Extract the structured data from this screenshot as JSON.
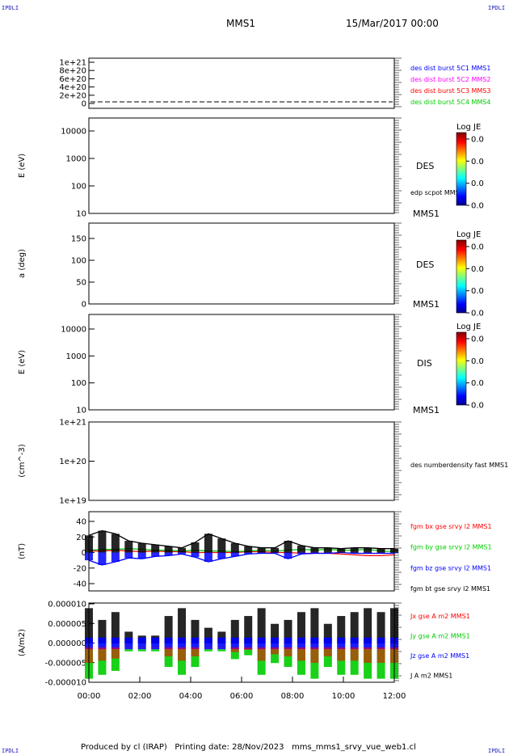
{
  "corners": {
    "label": "IPDLI"
  },
  "header": {
    "spacecraft": "MMS1",
    "date": "15/Mar/2017 00:00"
  },
  "footer": {
    "produced_by": "Produced by cl (IRAP)",
    "printing": "Printing date: 28/Nov/2023",
    "file": "mms_mms1_srvy_vue_web1.cl"
  },
  "colors": {
    "red": "#ff0000",
    "green": "#00cc00",
    "blue": "#0000ff",
    "magenta": "#ff00ff",
    "black": "#000000"
  },
  "chart_data": [
    {
      "type": "line",
      "panel": "distribution",
      "yticks": [
        "1e+21",
        "8e+20",
        "6e+20",
        "4e+20",
        "2e+20",
        "0"
      ],
      "series": [
        {
          "name": "des dist burst 5C1 MMS1",
          "color": "#0000ff",
          "values": []
        },
        {
          "name": "des dist burst 5C2 MMS2",
          "color": "#ff00ff",
          "values": []
        },
        {
          "name": "des dist burst 5C3 MMS3",
          "color": "#ff0000",
          "values": []
        },
        {
          "name": "des dist burst 5C4 MMS4",
          "color": "#00cc00",
          "values": []
        }
      ],
      "ylim": [
        0,
        1e+21
      ]
    },
    {
      "type": "heatmap",
      "panel": "des-energy",
      "ylabel": "E (eV)",
      "yscale": "log",
      "yticks": [
        "10000",
        "1000",
        "100",
        "10"
      ],
      "ylim": [
        10,
        20000
      ],
      "instrument": "DES",
      "spacecraft": "MMS1",
      "overlay": "edp scpot MMS1",
      "colorbar": {
        "title": "Log JE",
        "ticks": [
          "0.0",
          "0.0",
          "0.0",
          "0.0"
        ]
      }
    },
    {
      "type": "heatmap",
      "panel": "des-pitch",
      "ylabel": "a (deg)",
      "yticks": [
        "150",
        "100",
        "50",
        "0"
      ],
      "ylim": [
        0,
        180
      ],
      "instrument": "DES",
      "spacecraft": "MMS1",
      "colorbar": {
        "title": "Log JE",
        "ticks": [
          "0.0",
          "0.0",
          "0.0",
          "0.0"
        ]
      }
    },
    {
      "type": "heatmap",
      "panel": "dis-energy",
      "ylabel": "E (eV)",
      "yscale": "log",
      "yticks": [
        "10000",
        "1000",
        "100",
        "10"
      ],
      "ylim": [
        10,
        20000
      ],
      "instrument": "DIS",
      "spacecraft": "MMS1",
      "colorbar": {
        "title": "Log JE",
        "ticks": [
          "0.0",
          "0.0",
          "0.0",
          "0.0"
        ]
      }
    },
    {
      "type": "line",
      "panel": "density",
      "ylabel": "(cm^-3)",
      "yscale": "log",
      "yticks": [
        "1e+21",
        "1e+20",
        "1e+19"
      ],
      "ylim": [
        1e+19,
        1e+21
      ],
      "series": [
        {
          "name": "des numberdensity fast MMS1",
          "color": "#000000",
          "values": []
        }
      ]
    },
    {
      "type": "line",
      "panel": "magnetic-field",
      "ylabel": "(nT)",
      "yticks": [
        "40",
        "20",
        "0",
        "-20",
        "-40"
      ],
      "ylim": [
        -47,
        47
      ],
      "series": [
        {
          "name": "fgm bx gse srvy l2 MMS1",
          "color": "#ff0000",
          "values": [
            2,
            2,
            3,
            2,
            1,
            2,
            1,
            1,
            0,
            0,
            0,
            0,
            1,
            1,
            0,
            0,
            -1,
            -1,
            -1,
            -2,
            -3,
            -4,
            -4,
            -3
          ]
        },
        {
          "name": "fgm by gse srvy l2 MMS1",
          "color": "#00cc00",
          "values": [
            3,
            4,
            4,
            5,
            4,
            3,
            3,
            2,
            3,
            2,
            2,
            1,
            2,
            3,
            2,
            3,
            4,
            3,
            4,
            3,
            3,
            4,
            2,
            1
          ]
        },
        {
          "name": "fgm bz gse srvy l2 MMS1",
          "color": "#0000ff",
          "values": [
            -10,
            -16,
            -12,
            -7,
            -8,
            -5,
            -4,
            -2,
            -6,
            -12,
            -8,
            -5,
            -2,
            -1,
            -1,
            -8,
            -2,
            -1,
            -1,
            0,
            -1,
            -1,
            -1,
            -1
          ]
        },
        {
          "name": "fgm bt gse srvy l2 MMS1",
          "color": "#000000",
          "values": [
            22,
            28,
            24,
            15,
            12,
            10,
            8,
            6,
            13,
            24,
            18,
            12,
            8,
            6,
            6,
            15,
            9,
            6,
            6,
            5,
            6,
            6,
            5,
            5
          ]
        }
      ]
    },
    {
      "type": "line",
      "panel": "current-density",
      "ylabel": "(A/m2)",
      "yticks": [
        "0.000010",
        "0.000005",
        "0.000000",
        "-0.000005",
        "-0.000010"
      ],
      "ylim": [
        -1e-05,
        1e-05
      ],
      "xticks": [
        "00:00",
        "02:00",
        "04:00",
        "06:00",
        "08:00",
        "10:00",
        "12:00"
      ],
      "series": [
        {
          "name": "Jx gse A m2 MMS1",
          "color": "#ff0000",
          "values": []
        },
        {
          "name": "Jy gse A m2 MMS1",
          "color": "#00cc00",
          "values": []
        },
        {
          "name": "Jz gse A m2 MMS1",
          "color": "#0000ff",
          "values": []
        },
        {
          "name": "J A m2 MMS1",
          "color": "#000000",
          "values": []
        }
      ]
    }
  ]
}
